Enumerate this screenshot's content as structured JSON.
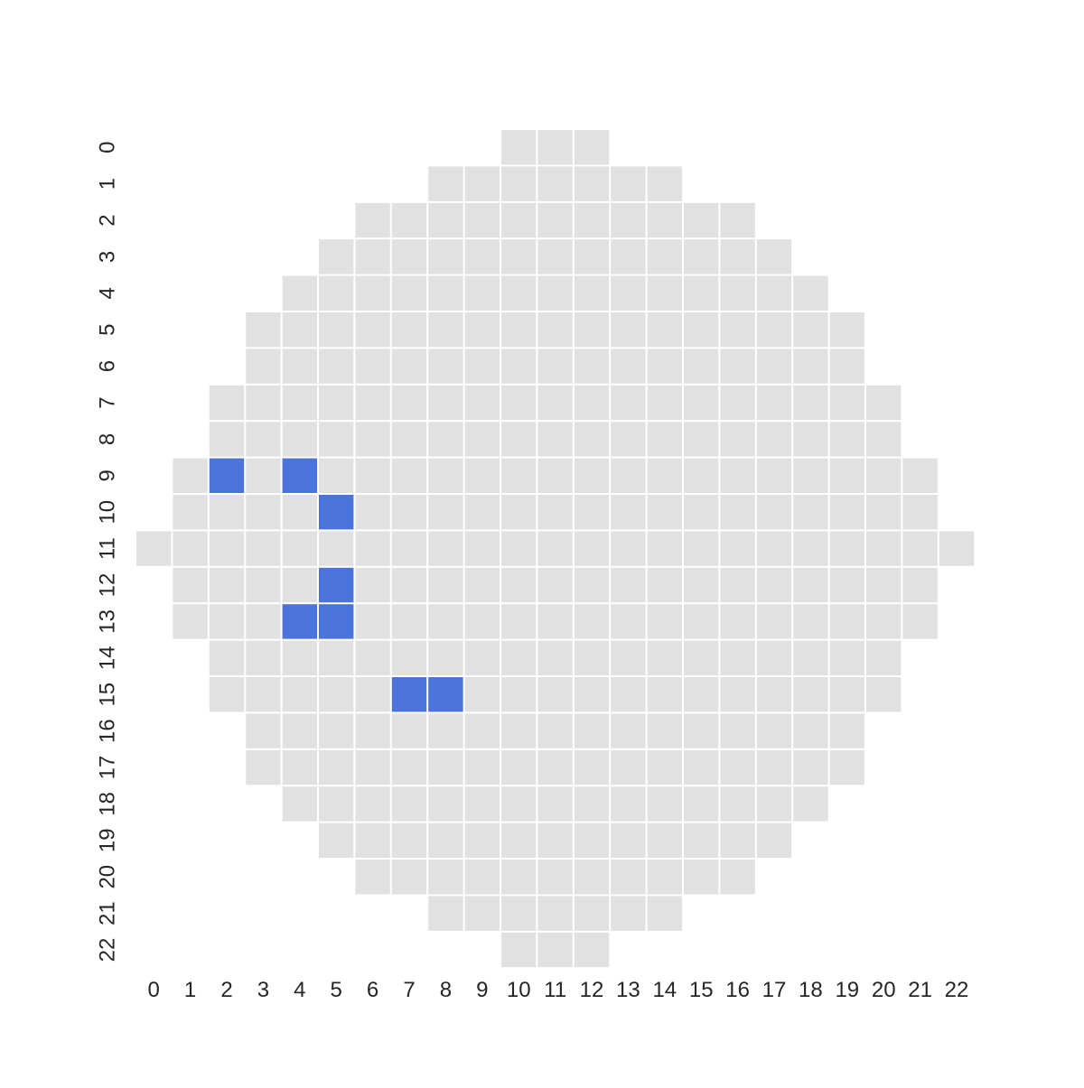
{
  "chart_data": {
    "type": "heatmap",
    "title": "",
    "xlabel": "",
    "ylabel": "",
    "x_ticks": [
      "0",
      "1",
      "2",
      "3",
      "4",
      "5",
      "6",
      "7",
      "8",
      "9",
      "10",
      "11",
      "12",
      "13",
      "14",
      "15",
      "16",
      "17",
      "18",
      "19",
      "20",
      "21",
      "22"
    ],
    "y_ticks": [
      "0",
      "1",
      "2",
      "3",
      "4",
      "5",
      "6",
      "7",
      "8",
      "9",
      "10",
      "11",
      "12",
      "13",
      "14",
      "15",
      "16",
      "17",
      "18",
      "19",
      "20",
      "21",
      "22"
    ],
    "grid": false,
    "colors": {
      "background_cell": "#e1e1e1",
      "highlight_cell": "#4a73db",
      "cell_border": "#ffffff"
    },
    "row_spans": [
      {
        "row": 0,
        "from": 10,
        "to": 12
      },
      {
        "row": 1,
        "from": 8,
        "to": 14
      },
      {
        "row": 2,
        "from": 6,
        "to": 16
      },
      {
        "row": 3,
        "from": 5,
        "to": 17
      },
      {
        "row": 4,
        "from": 4,
        "to": 18
      },
      {
        "row": 5,
        "from": 3,
        "to": 19
      },
      {
        "row": 6,
        "from": 3,
        "to": 19
      },
      {
        "row": 7,
        "from": 2,
        "to": 20
      },
      {
        "row": 8,
        "from": 2,
        "to": 20
      },
      {
        "row": 9,
        "from": 1,
        "to": 21
      },
      {
        "row": 10,
        "from": 1,
        "to": 21
      },
      {
        "row": 11,
        "from": 0,
        "to": 22
      },
      {
        "row": 12,
        "from": 1,
        "to": 21
      },
      {
        "row": 13,
        "from": 1,
        "to": 21
      },
      {
        "row": 14,
        "from": 2,
        "to": 20
      },
      {
        "row": 15,
        "from": 2,
        "to": 20
      },
      {
        "row": 16,
        "from": 3,
        "to": 19
      },
      {
        "row": 17,
        "from": 3,
        "to": 19
      },
      {
        "row": 18,
        "from": 4,
        "to": 18
      },
      {
        "row": 19,
        "from": 5,
        "to": 17
      },
      {
        "row": 20,
        "from": 6,
        "to": 16
      },
      {
        "row": 21,
        "from": 8,
        "to": 14
      },
      {
        "row": 22,
        "from": 10,
        "to": 12
      }
    ],
    "highlighted_cells": [
      {
        "row": 9,
        "col": 2
      },
      {
        "row": 9,
        "col": 4
      },
      {
        "row": 10,
        "col": 5
      },
      {
        "row": 12,
        "col": 5
      },
      {
        "row": 13,
        "col": 4
      },
      {
        "row": 13,
        "col": 5
      },
      {
        "row": 15,
        "col": 7
      },
      {
        "row": 15,
        "col": 8
      }
    ]
  }
}
